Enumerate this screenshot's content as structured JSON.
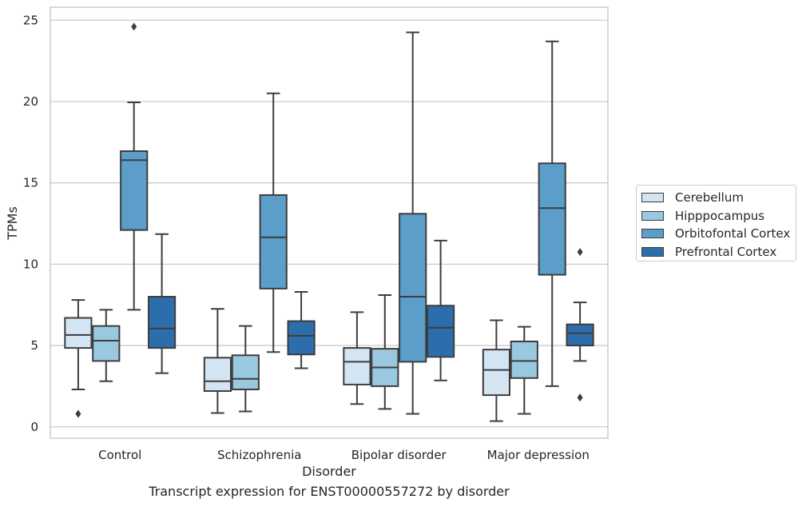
{
  "caption": "Transcript expression for ENST00000557272 by disorder",
  "chart_data": {
    "type": "box",
    "title": "",
    "xlabel": "Disorder",
    "ylabel": "TPMs",
    "ylim": [
      -0.7,
      25.8
    ],
    "yticks": [
      0,
      5,
      10,
      15,
      20,
      25
    ],
    "grid": "horizontal",
    "legend_position": "right",
    "categories": [
      "Control",
      "Schizophrenia",
      "Bipolar disorder",
      "Major depression"
    ],
    "series": [
      {
        "name": "Cerebellum",
        "color": "#d3e4f3",
        "boxes": [
          {
            "whislo": 2.3,
            "q1": 4.85,
            "med": 5.65,
            "q3": 6.7,
            "whishi": 7.8,
            "fliers": [
              0.8
            ]
          },
          {
            "whislo": 0.85,
            "q1": 2.2,
            "med": 2.8,
            "q3": 4.25,
            "whishi": 7.25,
            "fliers": []
          },
          {
            "whislo": 1.4,
            "q1": 2.6,
            "med": 4.0,
            "q3": 4.85,
            "whishi": 7.05,
            "fliers": []
          },
          {
            "whislo": 0.35,
            "q1": 1.95,
            "med": 3.5,
            "q3": 4.75,
            "whishi": 6.55,
            "fliers": []
          }
        ]
      },
      {
        "name": "Hipppocampus",
        "color": "#9ac8e0",
        "boxes": [
          {
            "whislo": 2.8,
            "q1": 4.05,
            "med": 5.3,
            "q3": 6.2,
            "whishi": 7.2,
            "fliers": []
          },
          {
            "whislo": 0.95,
            "q1": 2.3,
            "med": 2.95,
            "q3": 4.4,
            "whishi": 6.2,
            "fliers": []
          },
          {
            "whislo": 1.1,
            "q1": 2.5,
            "med": 3.65,
            "q3": 4.8,
            "whishi": 8.1,
            "fliers": []
          },
          {
            "whislo": 0.8,
            "q1": 3.0,
            "med": 4.05,
            "q3": 5.25,
            "whishi": 6.15,
            "fliers": []
          }
        ]
      },
      {
        "name": "Orbitofontal Cortex",
        "color": "#5a9ec9",
        "boxes": [
          {
            "whislo": 7.2,
            "q1": 12.1,
            "med": 16.4,
            "q3": 16.95,
            "whishi": 19.95,
            "fliers": [
              24.6
            ]
          },
          {
            "whislo": 4.6,
            "q1": 8.5,
            "med": 11.65,
            "q3": 14.25,
            "whishi": 20.5,
            "fliers": []
          },
          {
            "whislo": 0.8,
            "q1": 4.0,
            "med": 8.0,
            "q3": 13.1,
            "whishi": 24.25,
            "fliers": []
          },
          {
            "whislo": 2.5,
            "q1": 9.35,
            "med": 13.45,
            "q3": 16.2,
            "whishi": 23.7,
            "fliers": []
          }
        ]
      },
      {
        "name": "Prefrontal Cortex",
        "color": "#2c6eab",
        "boxes": [
          {
            "whislo": 3.3,
            "q1": 4.85,
            "med": 6.05,
            "q3": 8.0,
            "whishi": 11.85,
            "fliers": []
          },
          {
            "whislo": 3.6,
            "q1": 4.45,
            "med": 5.6,
            "q3": 6.5,
            "whishi": 8.3,
            "fliers": []
          },
          {
            "whislo": 2.85,
            "q1": 4.3,
            "med": 6.1,
            "q3": 7.45,
            "whishi": 11.45,
            "fliers": []
          },
          {
            "whislo": 4.05,
            "q1": 5.0,
            "med": 5.75,
            "q3": 6.3,
            "whishi": 7.65,
            "fliers": [
              1.8,
              10.75
            ]
          }
        ]
      }
    ]
  }
}
